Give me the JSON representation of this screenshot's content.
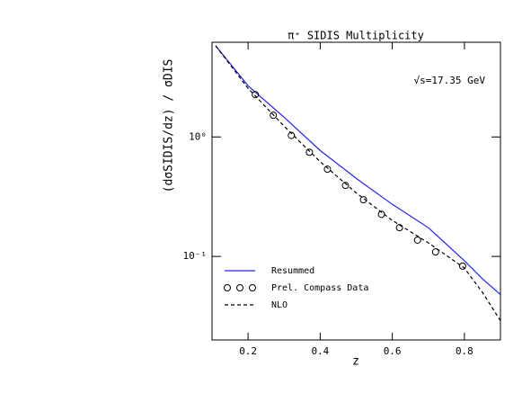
{
  "chart_data": {
    "type": "line",
    "title": "π⁺ SIDIS Multiplicity",
    "x_label": "z",
    "y_label": "(dσSIDIS/dz) / σDIS",
    "annotation": "√s=17.35 GeV",
    "log_y": true,
    "legend": "lower left",
    "xlim": [
      0.1,
      0.9
    ],
    "xticks": [
      0.2,
      0.4,
      0.6,
      0.8
    ],
    "ylim": [
      0.02,
      6.2
    ],
    "yticks": [
      {
        "value": 1,
        "label": "10⁰"
      },
      {
        "value": 0.1,
        "label": "10⁻¹"
      }
    ],
    "series": [
      {
        "name": "Resummed",
        "type": "line",
        "color": "#2222ee",
        "dashed": false,
        "x": [
          0.11,
          0.2,
          0.3,
          0.4,
          0.5,
          0.6,
          0.7,
          0.8,
          0.85,
          0.9
        ],
        "values": [
          5.8,
          2.68,
          1.46,
          0.77,
          0.45,
          0.273,
          0.174,
          0.092,
          0.065,
          0.048
        ]
      },
      {
        "name": "Prel. Compass Data",
        "type": "scatter",
        "color": "#000000",
        "dashed": false,
        "x": [
          0.22,
          0.27,
          0.32,
          0.37,
          0.42,
          0.47,
          0.52,
          0.57,
          0.62,
          0.67,
          0.72,
          0.795
        ],
        "values": [
          2.26,
          1.52,
          1.03,
          0.745,
          0.537,
          0.393,
          0.298,
          0.225,
          0.174,
          0.137,
          0.109,
          0.083
        ]
      },
      {
        "name": "NLO",
        "type": "line",
        "color": "#000000",
        "dashed": true,
        "x": [
          0.11,
          0.2,
          0.3,
          0.4,
          0.5,
          0.6,
          0.7,
          0.8,
          0.85,
          0.9
        ],
        "values": [
          5.8,
          2.55,
          1.23,
          0.62,
          0.34,
          0.2,
          0.13,
          0.08,
          0.05,
          0.029
        ]
      }
    ]
  }
}
